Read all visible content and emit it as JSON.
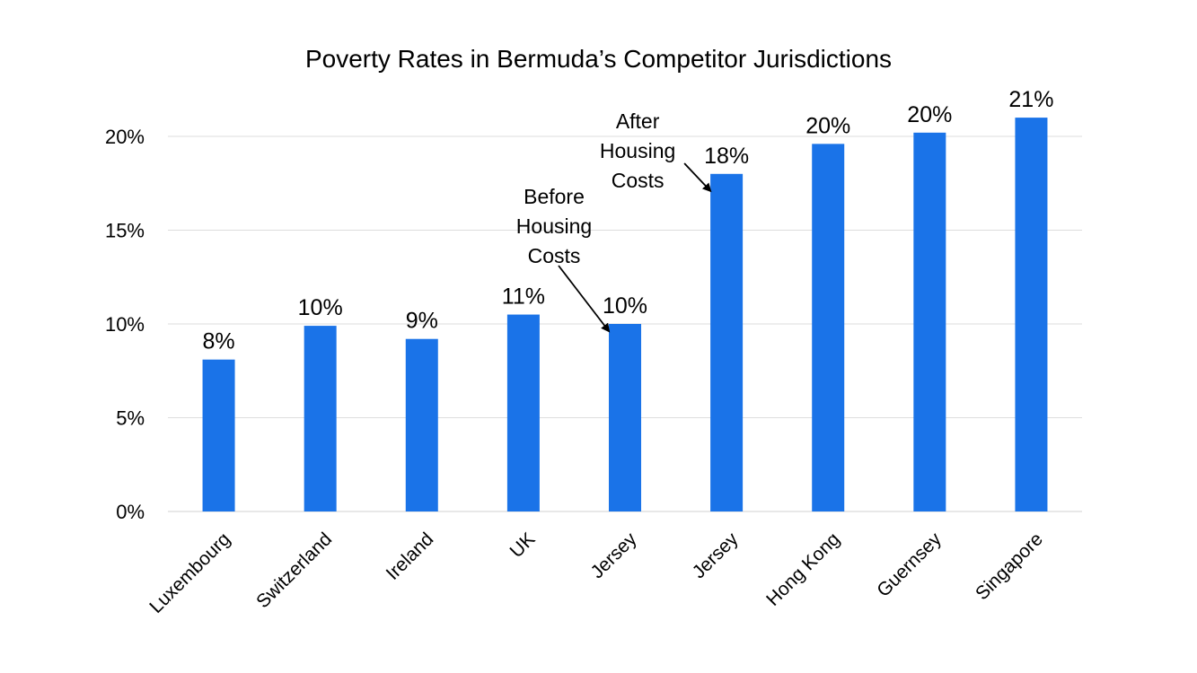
{
  "chart_data": {
    "type": "bar",
    "title": "Poverty Rates in Bermuda’s Competitor Jurisdictions",
    "categories": [
      "Luxembourg",
      "Switzerland",
      "Ireland",
      "UK",
      "Jersey",
      "Jersey",
      "Hong Kong",
      "Guernsey",
      "Singapore"
    ],
    "values": [
      8.1,
      9.9,
      9.2,
      10.5,
      10.0,
      18.0,
      19.6,
      20.2,
      21.0
    ],
    "data_labels": [
      "8%",
      "10%",
      "9%",
      "11%",
      "10%",
      "18%",
      "20%",
      "20%",
      "21%"
    ],
    "xlabel": "",
    "ylabel": "",
    "ylim": [
      0,
      22
    ],
    "yticks": [
      0,
      5,
      10,
      15,
      20
    ],
    "ytick_labels": [
      "0%",
      "5%",
      "10%",
      "15%",
      "20%"
    ],
    "grid": true,
    "bar_color": "#1A73E8",
    "annotations": [
      {
        "lines": [
          "Before",
          "Housing",
          "Costs"
        ],
        "target_index": 4
      },
      {
        "lines": [
          "After",
          "Housing",
          "Costs"
        ],
        "target_index": 5
      }
    ]
  }
}
